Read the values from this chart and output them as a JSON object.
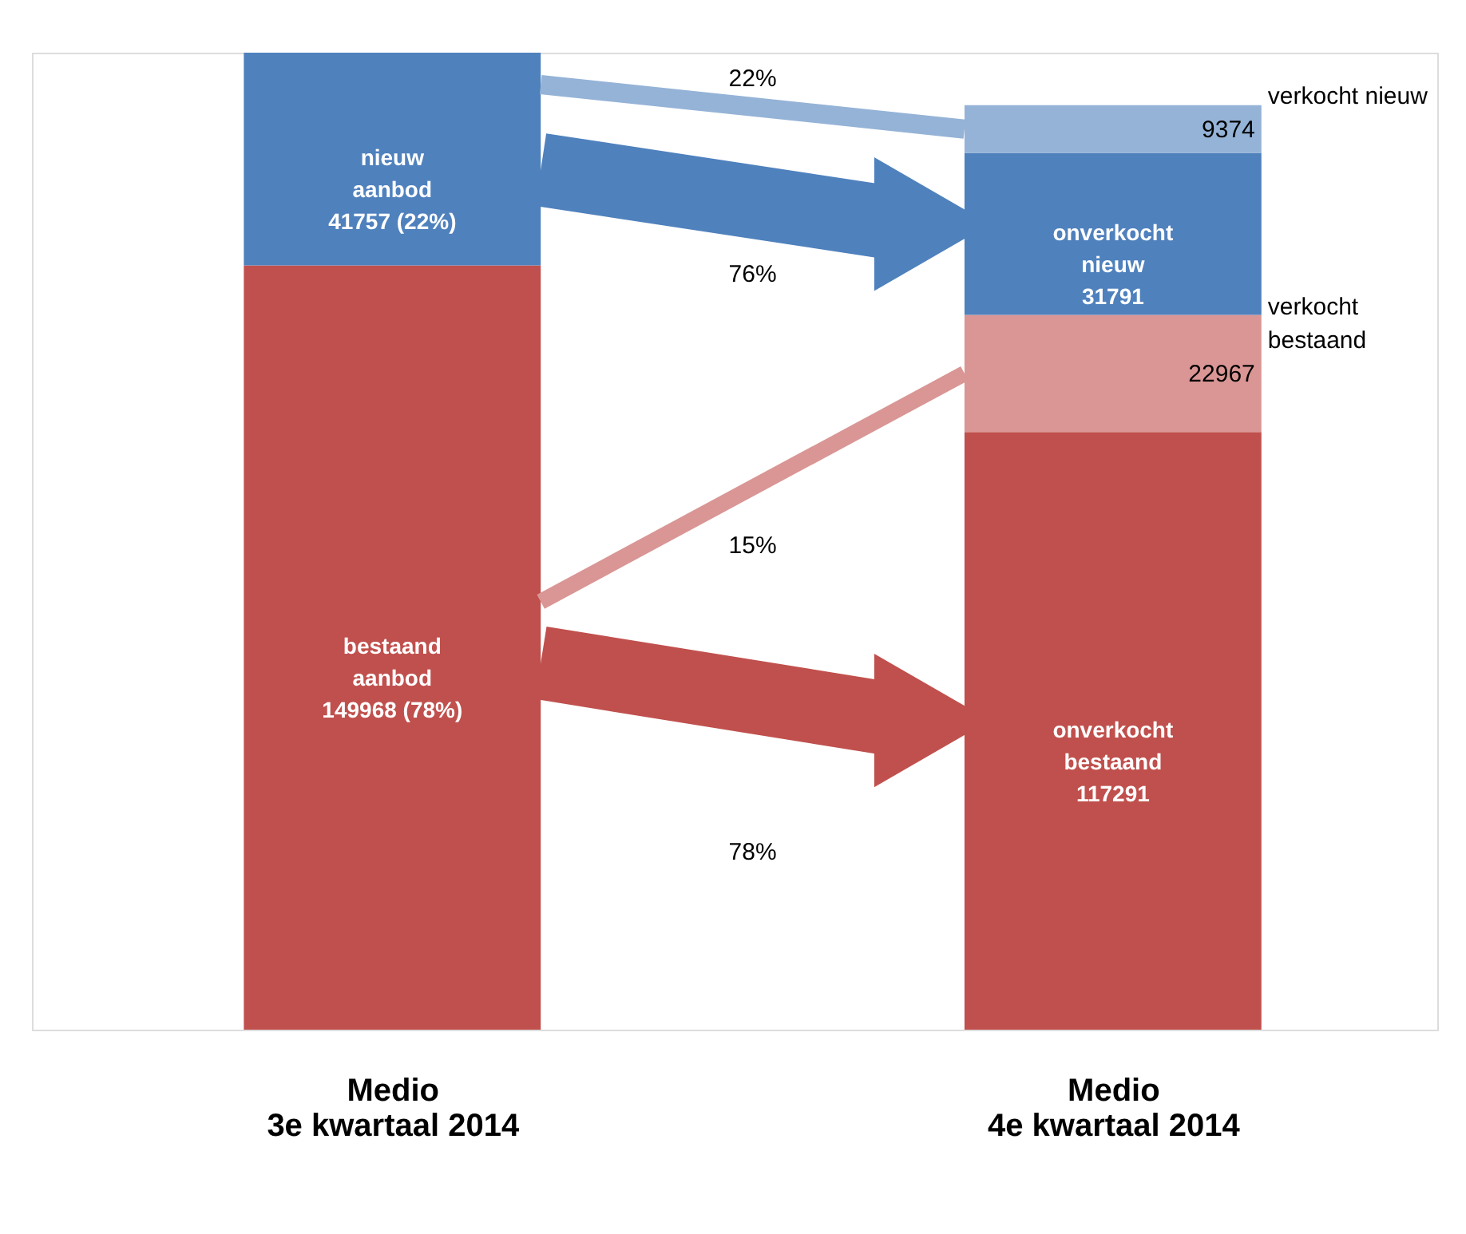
{
  "chart_data": {
    "type": "bar",
    "stacked": true,
    "categories": [
      "Medio 3e kwartaal 2014",
      "Medio 4e kwartaal 2014"
    ],
    "series": [
      {
        "name": "bestaand aanbod",
        "color": "#c0504d",
        "values": [
          149968,
          null
        ],
        "value_labels": [
          "149968   (78%)",
          null
        ]
      },
      {
        "name": "nieuw aanbod",
        "color": "#4f81bd",
        "values": [
          41757,
          null
        ],
        "value_labels": [
          "41757  (22%)",
          null
        ]
      },
      {
        "name": "onverkocht bestaand",
        "color": "#c0504d",
        "values": [
          null,
          117291
        ],
        "value_labels": [
          null,
          "117291"
        ]
      },
      {
        "name": "verkocht bestaand",
        "color": "#d99694",
        "values": [
          null,
          22967
        ],
        "value_labels": [
          null,
          "22967"
        ]
      },
      {
        "name": "onverkocht nieuw",
        "color": "#4f81bd",
        "values": [
          null,
          31791
        ],
        "value_labels": [
          null,
          "31791"
        ]
      },
      {
        "name": "verkocht nieuw",
        "color": "#95b3d7",
        "values": [
          null,
          9374
        ],
        "value_labels": [
          null,
          "9374"
        ]
      }
    ],
    "annotations": [
      "22%",
      "76%",
      "15%",
      "78%"
    ],
    "grid": false
  }
}
